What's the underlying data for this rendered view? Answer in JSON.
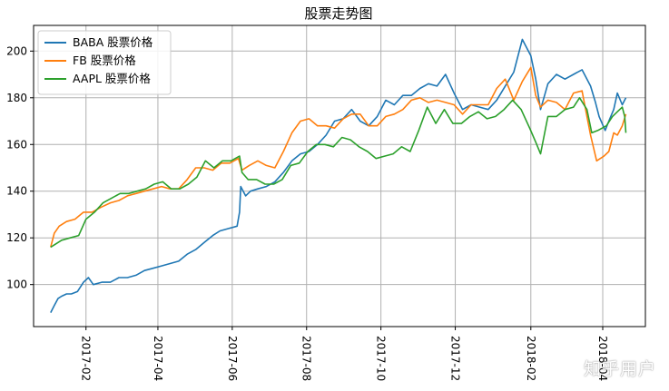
{
  "watermark": "知乎用户",
  "chart_data": {
    "type": "line",
    "title": "股票走势图",
    "xlabel": "",
    "ylabel": "",
    "x_range": [
      "2017-01-03",
      "2018-04-20"
    ],
    "ylim": [
      82,
      211
    ],
    "x_ticks": [
      "2017-02",
      "2017-04",
      "2017-06",
      "2017-08",
      "2017-10",
      "2017-12",
      "2018-02",
      "2018-04"
    ],
    "y_ticks": [
      100,
      120,
      140,
      160,
      180,
      200
    ],
    "grid": true,
    "legend_position": "top-left",
    "series": [
      {
        "name": "BABA 股票价格",
        "color": "#1f77b4",
        "points": [
          [
            "2017-01-03",
            88
          ],
          [
            "2017-01-06",
            91
          ],
          [
            "2017-01-09",
            94
          ],
          [
            "2017-01-12",
            95
          ],
          [
            "2017-01-16",
            96
          ],
          [
            "2017-01-20",
            96
          ],
          [
            "2017-01-25",
            97
          ],
          [
            "2017-01-30",
            101
          ],
          [
            "2017-02-03",
            103
          ],
          [
            "2017-02-07",
            100
          ],
          [
            "2017-02-14",
            101
          ],
          [
            "2017-02-21",
            101
          ],
          [
            "2017-02-28",
            103
          ],
          [
            "2017-03-07",
            103
          ],
          [
            "2017-03-14",
            104
          ],
          [
            "2017-03-21",
            106
          ],
          [
            "2017-03-28",
            107
          ],
          [
            "2017-04-04",
            108
          ],
          [
            "2017-04-11",
            109
          ],
          [
            "2017-04-18",
            110
          ],
          [
            "2017-04-25",
            113
          ],
          [
            "2017-05-02",
            115
          ],
          [
            "2017-05-09",
            118
          ],
          [
            "2017-05-16",
            121
          ],
          [
            "2017-05-22",
            123
          ],
          [
            "2017-05-29",
            124
          ],
          [
            "2017-06-05",
            125
          ],
          [
            "2017-06-07",
            131
          ],
          [
            "2017-06-08",
            142
          ],
          [
            "2017-06-12",
            138
          ],
          [
            "2017-06-16",
            140
          ],
          [
            "2017-06-22",
            141
          ],
          [
            "2017-06-29",
            142
          ],
          [
            "2017-07-06",
            144
          ],
          [
            "2017-07-13",
            148
          ],
          [
            "2017-07-20",
            153
          ],
          [
            "2017-07-27",
            156
          ],
          [
            "2017-08-03",
            157
          ],
          [
            "2017-08-10",
            160
          ],
          [
            "2017-08-17",
            164
          ],
          [
            "2017-08-24",
            170
          ],
          [
            "2017-08-31",
            171
          ],
          [
            "2017-09-07",
            175
          ],
          [
            "2017-09-14",
            170
          ],
          [
            "2017-09-21",
            168
          ],
          [
            "2017-09-28",
            172
          ],
          [
            "2017-10-05",
            179
          ],
          [
            "2017-10-12",
            177
          ],
          [
            "2017-10-19",
            181
          ],
          [
            "2017-10-26",
            181
          ],
          [
            "2017-11-02",
            184
          ],
          [
            "2017-11-09",
            186
          ],
          [
            "2017-11-16",
            185
          ],
          [
            "2017-11-23",
            190
          ],
          [
            "2017-11-30",
            182
          ],
          [
            "2017-12-07",
            175
          ],
          [
            "2017-12-14",
            177
          ],
          [
            "2017-12-21",
            176
          ],
          [
            "2017-12-28",
            175
          ],
          [
            "2018-01-04",
            179
          ],
          [
            "2018-01-11",
            185
          ],
          [
            "2018-01-18",
            191
          ],
          [
            "2018-01-25",
            205
          ],
          [
            "2018-02-01",
            198
          ],
          [
            "2018-02-05",
            188
          ],
          [
            "2018-02-09",
            175
          ],
          [
            "2018-02-15",
            186
          ],
          [
            "2018-02-22",
            190
          ],
          [
            "2018-03-01",
            188
          ],
          [
            "2018-03-08",
            190
          ],
          [
            "2018-03-15",
            192
          ],
          [
            "2018-03-22",
            185
          ],
          [
            "2018-03-26",
            178
          ],
          [
            "2018-03-29",
            172
          ],
          [
            "2018-04-03",
            166
          ],
          [
            "2018-04-06",
            170
          ],
          [
            "2018-04-10",
            175
          ],
          [
            "2018-04-13",
            182
          ],
          [
            "2018-04-17",
            177
          ],
          [
            "2018-04-20",
            180
          ]
        ]
      },
      {
        "name": "FB 股票价格",
        "color": "#ff7f0e",
        "points": [
          [
            "2017-01-03",
            116
          ],
          [
            "2017-01-06",
            122
          ],
          [
            "2017-01-10",
            125
          ],
          [
            "2017-01-16",
            127
          ],
          [
            "2017-01-23",
            128
          ],
          [
            "2017-01-30",
            131
          ],
          [
            "2017-02-06",
            131
          ],
          [
            "2017-02-13",
            133
          ],
          [
            "2017-02-21",
            135
          ],
          [
            "2017-02-28",
            136
          ],
          [
            "2017-03-07",
            138
          ],
          [
            "2017-03-14",
            139
          ],
          [
            "2017-03-21",
            140
          ],
          [
            "2017-03-28",
            141
          ],
          [
            "2017-04-04",
            142
          ],
          [
            "2017-04-11",
            141
          ],
          [
            "2017-04-18",
            141
          ],
          [
            "2017-04-25",
            145
          ],
          [
            "2017-05-02",
            150
          ],
          [
            "2017-05-09",
            150
          ],
          [
            "2017-05-16",
            149
          ],
          [
            "2017-05-23",
            152
          ],
          [
            "2017-05-30",
            152
          ],
          [
            "2017-06-06",
            154
          ],
          [
            "2017-06-09",
            149
          ],
          [
            "2017-06-15",
            151
          ],
          [
            "2017-06-22",
            153
          ],
          [
            "2017-06-29",
            151
          ],
          [
            "2017-07-06",
            150
          ],
          [
            "2017-07-13",
            157
          ],
          [
            "2017-07-20",
            165
          ],
          [
            "2017-07-27",
            170
          ],
          [
            "2017-08-03",
            171
          ],
          [
            "2017-08-10",
            168
          ],
          [
            "2017-08-17",
            168
          ],
          [
            "2017-08-24",
            167
          ],
          [
            "2017-08-31",
            171
          ],
          [
            "2017-09-07",
            173
          ],
          [
            "2017-09-14",
            173
          ],
          [
            "2017-09-21",
            168
          ],
          [
            "2017-09-28",
            168
          ],
          [
            "2017-10-05",
            172
          ],
          [
            "2017-10-12",
            173
          ],
          [
            "2017-10-19",
            175
          ],
          [
            "2017-10-26",
            179
          ],
          [
            "2017-11-02",
            180
          ],
          [
            "2017-11-09",
            178
          ],
          [
            "2017-11-16",
            179
          ],
          [
            "2017-11-23",
            178
          ],
          [
            "2017-11-30",
            177
          ],
          [
            "2017-12-07",
            173
          ],
          [
            "2017-12-14",
            177
          ],
          [
            "2017-12-21",
            177
          ],
          [
            "2017-12-28",
            177
          ],
          [
            "2018-01-04",
            184
          ],
          [
            "2018-01-11",
            188
          ],
          [
            "2018-01-18",
            179
          ],
          [
            "2018-01-25",
            187
          ],
          [
            "2018-02-01",
            193
          ],
          [
            "2018-02-05",
            181
          ],
          [
            "2018-02-09",
            176
          ],
          [
            "2018-02-15",
            179
          ],
          [
            "2018-02-22",
            178
          ],
          [
            "2018-03-01",
            175
          ],
          [
            "2018-03-08",
            182
          ],
          [
            "2018-03-15",
            183
          ],
          [
            "2018-03-19",
            172
          ],
          [
            "2018-03-22",
            164
          ],
          [
            "2018-03-27",
            153
          ],
          [
            "2018-04-02",
            155
          ],
          [
            "2018-04-06",
            157
          ],
          [
            "2018-04-10",
            165
          ],
          [
            "2018-04-13",
            164
          ],
          [
            "2018-04-17",
            168
          ],
          [
            "2018-04-20",
            173
          ]
        ]
      },
      {
        "name": "AAPL 股票价格",
        "color": "#2ca02c",
        "points": [
          [
            "2017-01-03",
            116
          ],
          [
            "2017-01-06",
            117
          ],
          [
            "2017-01-12",
            119
          ],
          [
            "2017-01-19",
            120
          ],
          [
            "2017-01-26",
            121
          ],
          [
            "2017-02-01",
            128
          ],
          [
            "2017-02-08",
            131
          ],
          [
            "2017-02-15",
            135
          ],
          [
            "2017-02-22",
            137
          ],
          [
            "2017-03-01",
            139
          ],
          [
            "2017-03-08",
            139
          ],
          [
            "2017-03-15",
            140
          ],
          [
            "2017-03-22",
            141
          ],
          [
            "2017-03-29",
            143
          ],
          [
            "2017-04-05",
            144
          ],
          [
            "2017-04-12",
            141
          ],
          [
            "2017-04-19",
            141
          ],
          [
            "2017-04-26",
            143
          ],
          [
            "2017-05-03",
            146
          ],
          [
            "2017-05-10",
            153
          ],
          [
            "2017-05-17",
            150
          ],
          [
            "2017-05-24",
            153
          ],
          [
            "2017-05-31",
            153
          ],
          [
            "2017-06-07",
            155
          ],
          [
            "2017-06-09",
            148
          ],
          [
            "2017-06-14",
            145
          ],
          [
            "2017-06-21",
            145
          ],
          [
            "2017-06-28",
            143
          ],
          [
            "2017-07-05",
            143
          ],
          [
            "2017-07-12",
            145
          ],
          [
            "2017-07-19",
            151
          ],
          [
            "2017-07-26",
            152
          ],
          [
            "2017-08-02",
            157
          ],
          [
            "2017-08-09",
            160
          ],
          [
            "2017-08-16",
            160
          ],
          [
            "2017-08-23",
            159
          ],
          [
            "2017-08-30",
            163
          ],
          [
            "2017-09-06",
            162
          ],
          [
            "2017-09-13",
            159
          ],
          [
            "2017-09-20",
            157
          ],
          [
            "2017-09-27",
            154
          ],
          [
            "2017-10-04",
            155
          ],
          [
            "2017-10-11",
            156
          ],
          [
            "2017-10-18",
            159
          ],
          [
            "2017-10-25",
            157
          ],
          [
            "2017-11-01",
            166
          ],
          [
            "2017-11-08",
            176
          ],
          [
            "2017-11-15",
            169
          ],
          [
            "2017-11-22",
            175
          ],
          [
            "2017-11-29",
            169
          ],
          [
            "2017-12-06",
            169
          ],
          [
            "2017-12-13",
            172
          ],
          [
            "2017-12-20",
            174
          ],
          [
            "2017-12-27",
            171
          ],
          [
            "2018-01-03",
            172
          ],
          [
            "2018-01-10",
            175
          ],
          [
            "2018-01-17",
            179
          ],
          [
            "2018-01-24",
            175
          ],
          [
            "2018-01-31",
            167
          ],
          [
            "2018-02-05",
            161
          ],
          [
            "2018-02-09",
            156
          ],
          [
            "2018-02-15",
            172
          ],
          [
            "2018-02-22",
            172
          ],
          [
            "2018-03-01",
            175
          ],
          [
            "2018-03-08",
            176
          ],
          [
            "2018-03-13",
            180
          ],
          [
            "2018-03-19",
            175
          ],
          [
            "2018-03-23",
            165
          ],
          [
            "2018-03-28",
            166
          ],
          [
            "2018-04-04",
            168
          ],
          [
            "2018-04-09",
            172
          ],
          [
            "2018-04-13",
            174
          ],
          [
            "2018-04-17",
            176
          ],
          [
            "2018-04-19",
            172
          ],
          [
            "2018-04-20",
            165
          ]
        ]
      }
    ]
  }
}
